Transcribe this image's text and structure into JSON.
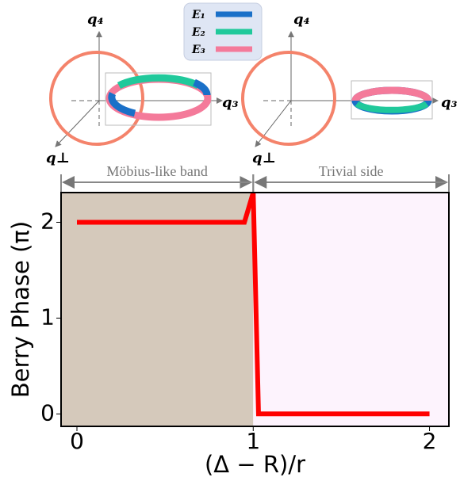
{
  "chart_data": {
    "type": "line",
    "xlabel": "(Δ − R)/r",
    "ylabel": "Berry Phase (π)",
    "x": [
      0,
      0.95,
      1.0,
      1.03,
      2
    ],
    "series": [
      {
        "color": "#ff0000",
        "values": [
          2,
          2,
          2.31,
          0,
          0
        ]
      }
    ],
    "xlim": [
      -0.09,
      2.11
    ],
    "ylim": [
      -0.13,
      2.31
    ],
    "xticks": [
      0,
      1,
      2
    ],
    "yticks": [
      0,
      1,
      2
    ],
    "regions": [
      {
        "label": "Möbius-like band",
        "xrange": [
          -0.09,
          1
        ],
        "color": "#d5c9bb"
      },
      {
        "label": "Trivial side",
        "xrange": [
          1,
          2.11
        ],
        "color": "#fdf3fd"
      }
    ],
    "inset_legend": [
      {
        "name": "E₁",
        "color": "#1a70c8"
      },
      {
        "name": "E₂",
        "color": "#20c99b"
      },
      {
        "name": "E₃",
        "color": "#f47a9a"
      }
    ],
    "insets": [
      {
        "axis_labels": [
          "q₄",
          "q₃",
          "q⊥"
        ]
      },
      {
        "axis_labels": [
          "q₄",
          "q₃",
          "q⊥"
        ]
      }
    ]
  }
}
